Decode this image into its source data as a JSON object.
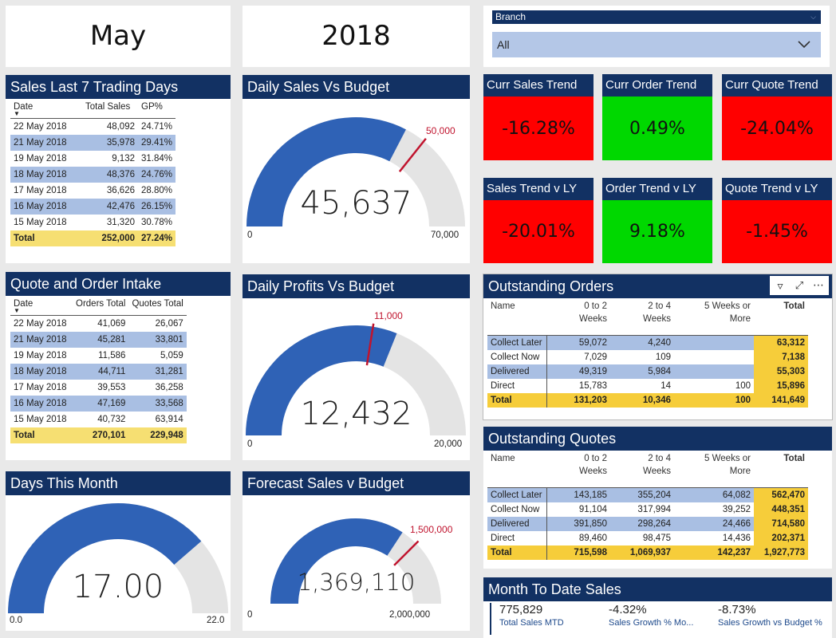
{
  "month_card": {
    "value": "May"
  },
  "year_card": {
    "value": "2018"
  },
  "slicer": {
    "title": "Branch",
    "selected": "All"
  },
  "colors": {
    "header": "#123163",
    "gauge_fill": "#2f62b6",
    "gauge_track": "#e4e4e4",
    "target": "#c0142e",
    "kpi_red": "#ff0000",
    "kpi_green": "#00d800",
    "highlight_row": "#a9bfe3",
    "total_row": "#f6df72"
  },
  "sales7": {
    "title": "Sales Last 7 Trading Days",
    "columns": [
      "Date",
      "Total Sales",
      "GP%"
    ],
    "rows": [
      [
        "22 May 2018",
        "48,092",
        "24.71%"
      ],
      [
        "21 May 2018",
        "35,978",
        "29.41%"
      ],
      [
        "19 May 2018",
        "9,132",
        "31.84%"
      ],
      [
        "18 May 2018",
        "48,376",
        "24.76%"
      ],
      [
        "17 May 2018",
        "36,626",
        "28.80%"
      ],
      [
        "16 May 2018",
        "42,476",
        "26.15%"
      ],
      [
        "15 May 2018",
        "31,320",
        "30.78%"
      ]
    ],
    "total": [
      "Total",
      "252,000",
      "27.24%"
    ]
  },
  "intake": {
    "title": "Quote and Order Intake",
    "columns": [
      "Date",
      "Orders Total",
      "Quotes Total"
    ],
    "rows": [
      [
        "22 May 2018",
        "41,069",
        "26,067"
      ],
      [
        "21 May 2018",
        "45,281",
        "33,801"
      ],
      [
        "19 May 2018",
        "11,586",
        "5,059"
      ],
      [
        "18 May 2018",
        "44,711",
        "31,281"
      ],
      [
        "17 May 2018",
        "39,553",
        "36,258"
      ],
      [
        "16 May 2018",
        "47,169",
        "33,568"
      ],
      [
        "15 May 2018",
        "40,732",
        "63,914"
      ]
    ],
    "total": [
      "Total",
      "270,101",
      "229,948"
    ]
  },
  "gauges": {
    "daily_sales": {
      "title": "Daily Sales Vs Budget",
      "value": 45637,
      "value_label": "45,637",
      "min": 0,
      "max": 70000,
      "target": 50000,
      "min_label": "0",
      "max_label": "70,000",
      "target_label": "50,000"
    },
    "daily_profits": {
      "title": "Daily Profits Vs Budget",
      "value": 12432,
      "value_label": "12,432",
      "min": 0,
      "max": 20000,
      "target": 11000,
      "min_label": "0",
      "max_label": "20,000",
      "target_label": "11,000"
    },
    "days": {
      "title": "Days This Month",
      "value": 17,
      "value_label": "17.00",
      "min": 0,
      "max": 22,
      "min_label": "0.0",
      "max_label": "22.0"
    },
    "forecast": {
      "title": "Forecast Sales v Budget",
      "value": 1369110,
      "value_label": "1,369,110",
      "min": 0,
      "max": 2000000,
      "target": 1500000,
      "min_label": "0",
      "max_label": "2,000,000",
      "target_label": "1,500,000"
    }
  },
  "kpis": [
    {
      "label": "Curr Sales Trend",
      "value": "-16.28%",
      "status": "red"
    },
    {
      "label": "Curr Order Trend",
      "value": "0.49%",
      "status": "green"
    },
    {
      "label": "Curr Quote Trend",
      "value": "-24.04%",
      "status": "red"
    },
    {
      "label": "Sales Trend v LY",
      "value": "-20.01%",
      "status": "red"
    },
    {
      "label": "Order Trend v LY",
      "value": "9.18%",
      "status": "green"
    },
    {
      "label": "Quote Trend v LY",
      "value": "-1.45%",
      "status": "red"
    }
  ],
  "orders": {
    "title": "Outstanding Orders",
    "columns": [
      "Name",
      "0 to 2\nWeeks",
      "2 to 4\nWeeks",
      "5 Weeks or\nMore",
      "Total"
    ],
    "rows": [
      [
        "Collect Later",
        "59,072",
        "4,240",
        "",
        "63,312"
      ],
      [
        "Collect Now",
        "7,029",
        "109",
        "",
        "7,138"
      ],
      [
        "Delivered",
        "49,319",
        "5,984",
        "",
        "55,303"
      ],
      [
        "Direct",
        "15,783",
        "14",
        "100",
        "15,896"
      ]
    ],
    "total": [
      "Total",
      "131,203",
      "10,346",
      "100",
      "141,649"
    ]
  },
  "quotes": {
    "title": "Outstanding Quotes",
    "columns": [
      "Name",
      "0 to 2\nWeeks",
      "2 to 4\nWeeks",
      "5 Weeks or\nMore",
      "Total"
    ],
    "rows": [
      [
        "Collect Later",
        "143,185",
        "355,204",
        "64,082",
        "562,470"
      ],
      [
        "Collect Now",
        "91,104",
        "317,994",
        "39,252",
        "448,351"
      ],
      [
        "Delivered",
        "391,850",
        "298,264",
        "24,466",
        "714,580"
      ],
      [
        "Direct",
        "89,460",
        "98,475",
        "14,436",
        "202,371"
      ]
    ],
    "total": [
      "Total",
      "715,598",
      "1,069,937",
      "142,237",
      "1,927,773"
    ]
  },
  "mtd": {
    "title": "Month To Date Sales",
    "items": [
      {
        "value": "775,829",
        "label": "Total Sales MTD"
      },
      {
        "value": "-4.32%",
        "label": "Sales Growth % Mo..."
      },
      {
        "value": "-8.73%",
        "label": "Sales Growth vs Budget %"
      }
    ]
  }
}
